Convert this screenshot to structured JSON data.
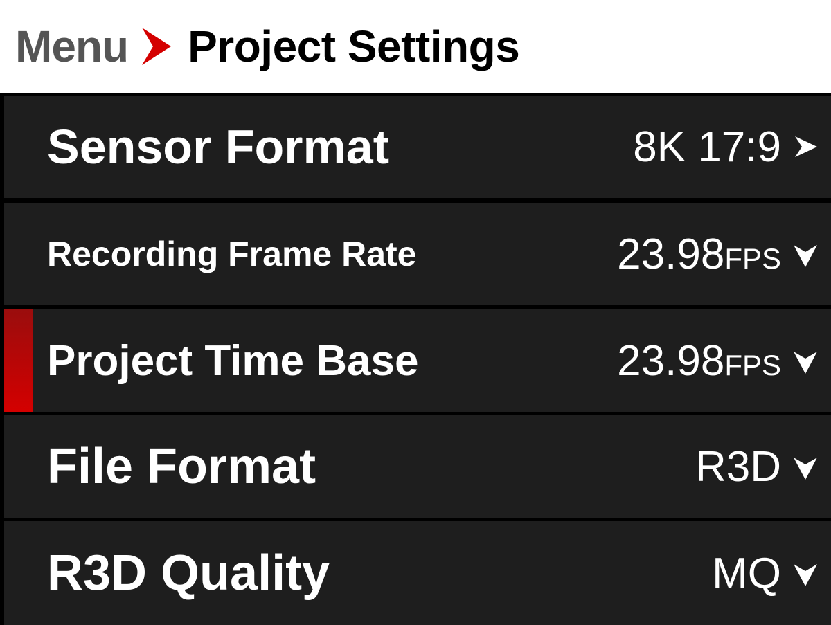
{
  "header": {
    "breadcrumb_root": "Menu",
    "title": "Project Settings",
    "arrow_icon": "chevron-right-icon",
    "accent_color": "#d40000"
  },
  "settings": [
    {
      "label": "Sensor Format",
      "value": "8K 17:9",
      "unit": "",
      "control_icon": "chevron-right-icon",
      "selected": false
    },
    {
      "label": "Recording Frame Rate",
      "value": "23.98",
      "unit": "FPS",
      "control_icon": "chevron-down-icon",
      "selected": false
    },
    {
      "label": "Project Time Base",
      "value": "23.98",
      "unit": "FPS",
      "control_icon": "chevron-down-icon",
      "selected": true
    },
    {
      "label": "File Format",
      "value": "R3D",
      "unit": "",
      "control_icon": "chevron-down-icon",
      "selected": false
    },
    {
      "label": "R3D Quality",
      "value": "MQ",
      "unit": "",
      "control_icon": "chevron-down-icon",
      "selected": false
    }
  ]
}
